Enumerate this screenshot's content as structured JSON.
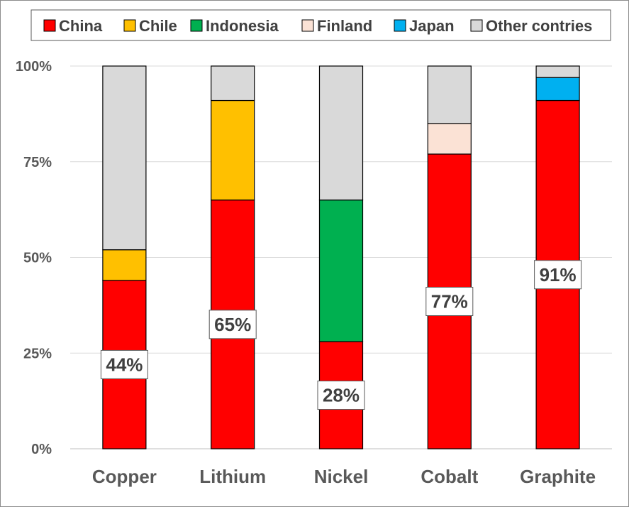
{
  "chart_data": {
    "type": "bar",
    "stacked": true,
    "percent_scale": true,
    "categories": [
      "Copper",
      "Lithium",
      "Nickel",
      "Cobalt",
      "Graphite"
    ],
    "series": [
      {
        "name": "China",
        "color": "#ff0000",
        "values": [
          44,
          65,
          28,
          77,
          91
        ]
      },
      {
        "name": "Chile",
        "color": "#ffc000",
        "values": [
          8,
          26,
          0,
          0,
          0
        ]
      },
      {
        "name": "Indonesia",
        "color": "#00b050",
        "values": [
          0,
          0,
          37,
          0,
          0
        ]
      },
      {
        "name": "Finland",
        "color": "#fbe2d5",
        "values": [
          0,
          0,
          0,
          8,
          0
        ]
      },
      {
        "name": "Japan",
        "color": "#00b0f0",
        "values": [
          0,
          0,
          0,
          0,
          6
        ]
      },
      {
        "name": "Other contries",
        "color": "#d9d9d9",
        "values": [
          48,
          9,
          35,
          15,
          3
        ]
      }
    ],
    "data_labels": [
      "44%",
      "65%",
      "28%",
      "77%",
      "91%"
    ],
    "ylim": [
      0,
      100
    ],
    "yticks": [
      "0%",
      "25%",
      "50%",
      "75%",
      "100%"
    ],
    "grid": true,
    "legend_position": "top",
    "title": "",
    "xlabel": "",
    "ylabel": ""
  }
}
